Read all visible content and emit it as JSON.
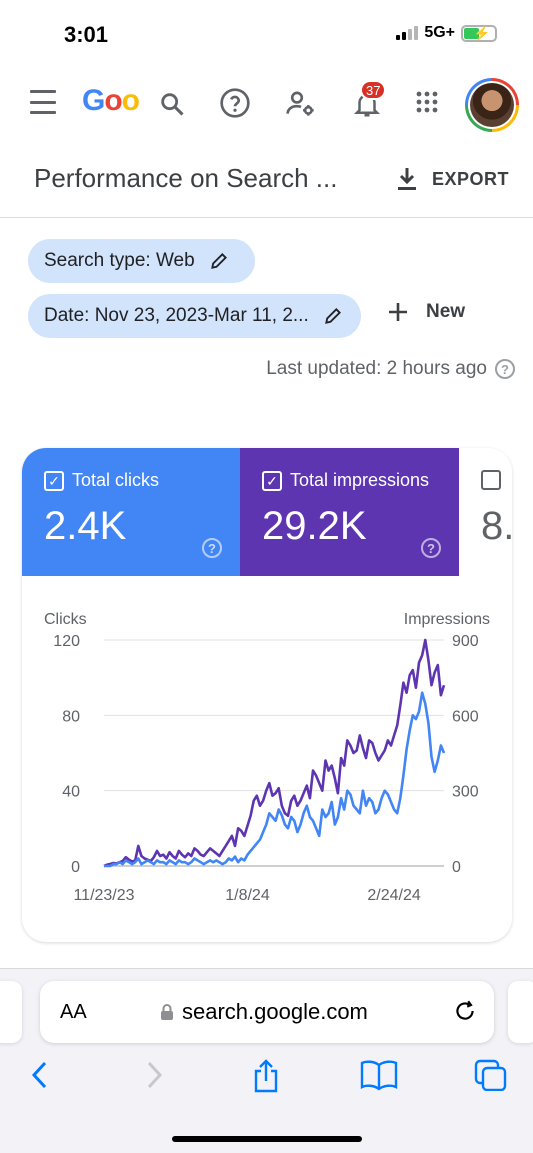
{
  "status": {
    "time": "3:01",
    "network": "5G+"
  },
  "header": {
    "logo_letters": [
      "G",
      "o",
      "o"
    ],
    "notification_count": "37"
  },
  "page": {
    "title": "Performance on Search ...",
    "export_label": "EXPORT"
  },
  "filters": {
    "search_type": "Search type: Web",
    "date": "Date: Nov 23, 2023-Mar 11, 2...",
    "new_label": "New"
  },
  "last_updated": "Last updated: 2 hours ago",
  "metrics": [
    {
      "label": "Total clicks",
      "value": "2.4K",
      "color": "#4285f4",
      "checked": true
    },
    {
      "label": "Total impressions",
      "value": "29.2K",
      "color": "#5e35b1",
      "checked": true
    },
    {
      "label": "",
      "value": "8.",
      "checked": false
    }
  ],
  "chart_data": {
    "type": "line",
    "left_axis_label": "Clicks",
    "right_axis_label": "Impressions",
    "left_ticks": [
      "120",
      "80",
      "40",
      "0"
    ],
    "right_ticks": [
      "900",
      "600",
      "300",
      "0"
    ],
    "left_range": [
      0,
      120
    ],
    "right_range": [
      0,
      900
    ],
    "x_ticks": [
      "11/23/23",
      "1/8/24",
      "2/24/24"
    ],
    "x_tick_days": [
      0,
      46,
      93
    ],
    "x_range_days": [
      0,
      109
    ],
    "grid": true,
    "series": [
      {
        "name": "Clicks",
        "axis": "left",
        "color": "#4285f4",
        "values": [
          0,
          0,
          0,
          1,
          1,
          2,
          1,
          3,
          2,
          1,
          2,
          4,
          1,
          2,
          3,
          2,
          1,
          3,
          2,
          2,
          1,
          3,
          2,
          1,
          3,
          2,
          2,
          1,
          2,
          4,
          3,
          2,
          1,
          2,
          3,
          2,
          3,
          2,
          1,
          2,
          4,
          3,
          5,
          2,
          4,
          3,
          6,
          8,
          10,
          12,
          14,
          18,
          22,
          28,
          26,
          24,
          30,
          27,
          22,
          20,
          26,
          24,
          18,
          22,
          28,
          32,
          26,
          24,
          20,
          16,
          30,
          26,
          28,
          34,
          22,
          26,
          36,
          30,
          40,
          38,
          32,
          30,
          28,
          40,
          32,
          36,
          34,
          28,
          30,
          36,
          40,
          38,
          34,
          30,
          28,
          36,
          48,
          62,
          72,
          80,
          78,
          82,
          92,
          86,
          76,
          58,
          50,
          56,
          64,
          60
        ]
      },
      {
        "name": "Impressions",
        "axis": "right",
        "color": "#5e35b1",
        "values": [
          0,
          5,
          8,
          12,
          10,
          15,
          20,
          35,
          25,
          18,
          22,
          80,
          40,
          30,
          25,
          20,
          35,
          60,
          40,
          45,
          30,
          55,
          40,
          30,
          60,
          45,
          35,
          50,
          40,
          70,
          60,
          45,
          40,
          55,
          70,
          60,
          50,
          40,
          60,
          80,
          100,
          120,
          80,
          150,
          140,
          120,
          160,
          200,
          260,
          280,
          240,
          260,
          300,
          330,
          280,
          290,
          310,
          240,
          210,
          200,
          260,
          280,
          240,
          260,
          290,
          320,
          270,
          380,
          360,
          330,
          300,
          420,
          380,
          400,
          350,
          290,
          430,
          400,
          500,
          480,
          450,
          460,
          520,
          470,
          430,
          500,
          490,
          450,
          420,
          440,
          460,
          500,
          480,
          520,
          560,
          640,
          730,
          690,
          760,
          780,
          710,
          810,
          840,
          900,
          820,
          720,
          770,
          800,
          680,
          720
        ]
      }
    ]
  },
  "browser": {
    "aa_label": "AA",
    "url": "search.google.com"
  }
}
